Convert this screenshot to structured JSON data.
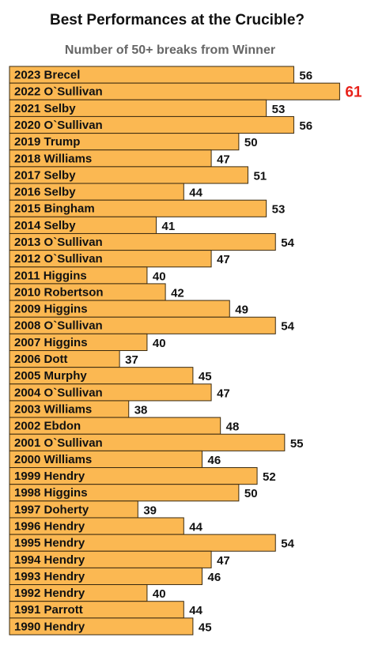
{
  "chart_data": {
    "type": "barh",
    "title": "Best Performances at the Crucible?",
    "subtitle": "Number of 50+ breaks from Winner",
    "categories": [
      "2023 Brecel",
      "2022 O`Sullivan",
      "2021 Selby",
      "2020 O`Sullivan",
      "2019 Trump",
      "2018 Williams",
      "2017 Selby",
      "2016 Selby",
      "2015 Bingham",
      "2014 Selby",
      "2013 O`Sullivan",
      "2012 O`Sullivan",
      "2011 Higgins",
      "2010 Robertson",
      "2009 Higgins",
      "2008 O`Sullivan",
      "2007 Higgins",
      "2006 Dott",
      "2005 Murphy",
      "2004 O`Sullivan",
      "2003 Williams",
      "2002 Ebdon",
      "2001 O`Sullivan",
      "2000 Williams",
      "1999 Hendry",
      "1998 Higgins",
      "1997 Doherty",
      "1996 Hendry",
      "1995 Hendry",
      "1994 Hendry",
      "1993 Hendry",
      "1992 Hendry",
      "1991 Parrott",
      "1990 Hendry"
    ],
    "values": [
      56,
      61,
      53,
      56,
      50,
      47,
      51,
      44,
      53,
      41,
      54,
      47,
      40,
      42,
      49,
      54,
      40,
      37,
      45,
      47,
      38,
      48,
      55,
      46,
      52,
      50,
      39,
      44,
      54,
      47,
      46,
      40,
      44,
      45
    ],
    "xlim": [
      25,
      62
    ],
    "color": "#fbb852",
    "highlight_color": "#e8221b"
  }
}
